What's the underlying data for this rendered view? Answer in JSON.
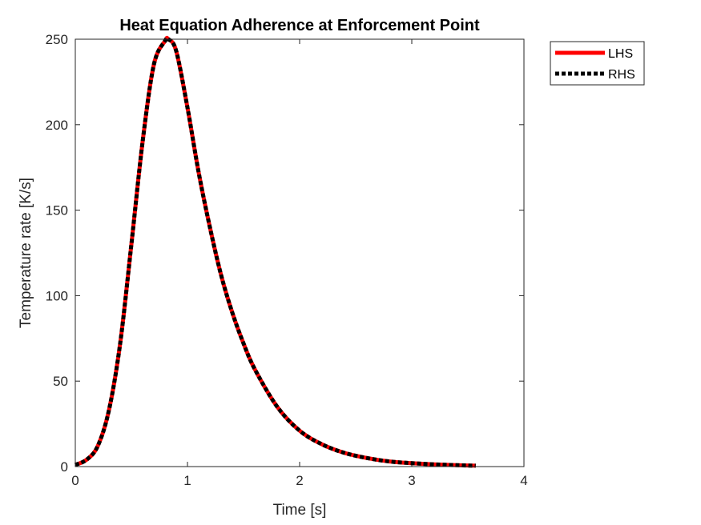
{
  "chart_data": {
    "type": "line",
    "title": "Heat Equation Adherence at Enforcement Point",
    "xlabel": "Time [s]",
    "ylabel": "Temperature rate [K/s]",
    "xlim": [
      0,
      4
    ],
    "ylim": [
      0,
      250
    ],
    "xticks": [
      0,
      1,
      2,
      3,
      4
    ],
    "yticks": [
      0,
      50,
      100,
      150,
      200,
      250
    ],
    "grid": false,
    "legend_position": "outside-top-right",
    "series": [
      {
        "name": "LHS",
        "color": "#ff0000",
        "style": "solid",
        "x": [
          0,
          0.1,
          0.2,
          0.3,
          0.4,
          0.5,
          0.6,
          0.7,
          0.8,
          0.83,
          0.9,
          1.0,
          1.1,
          1.2,
          1.3,
          1.4,
          1.5,
          1.6,
          1.8,
          2.0,
          2.2,
          2.4,
          2.6,
          2.8,
          3.0,
          3.2,
          3.4,
          3.57
        ],
        "y": [
          1,
          4,
          12,
          33,
          72,
          130,
          190,
          235,
          249,
          250,
          243,
          210,
          172,
          140,
          112,
          90,
          72,
          57,
          35,
          21,
          13,
          8,
          5,
          3,
          2,
          1.3,
          0.8,
          0.5
        ]
      },
      {
        "name": "RHS",
        "color": "#000000",
        "style": "dotted",
        "x": [
          0,
          0.1,
          0.2,
          0.3,
          0.4,
          0.5,
          0.6,
          0.7,
          0.8,
          0.83,
          0.9,
          1.0,
          1.1,
          1.2,
          1.3,
          1.4,
          1.5,
          1.6,
          1.8,
          2.0,
          2.2,
          2.4,
          2.6,
          2.8,
          3.0,
          3.2,
          3.4,
          3.57
        ],
        "y": [
          1,
          4,
          12,
          33,
          72,
          130,
          190,
          235,
          249,
          250,
          243,
          210,
          172,
          140,
          112,
          90,
          72,
          57,
          35,
          21,
          13,
          8,
          5,
          3,
          2,
          1.3,
          0.8,
          0.5
        ]
      }
    ]
  }
}
